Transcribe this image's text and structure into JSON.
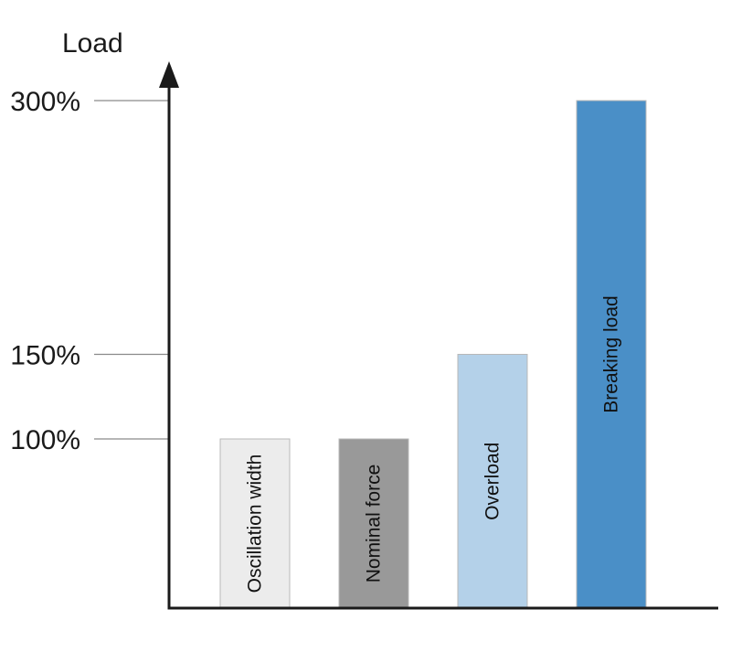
{
  "chart_data": {
    "type": "bar",
    "title": "",
    "xlabel": "",
    "ylabel": "Load",
    "ylim": [
      0,
      300
    ],
    "yticks": [
      {
        "value": 100,
        "label": "100%"
      },
      {
        "value": 150,
        "label": "150%"
      },
      {
        "value": 300,
        "label": "300%"
      }
    ],
    "categories": [
      "Oscillation width",
      "Nominal force",
      "Overload",
      "Breaking load"
    ],
    "values": [
      100,
      100,
      150,
      300
    ],
    "colors": [
      "#ececec",
      "#999999",
      "#b4d1e9",
      "#4a8fc7"
    ],
    "bar_labels_in_bars": true,
    "grid": false,
    "legend": "none"
  }
}
